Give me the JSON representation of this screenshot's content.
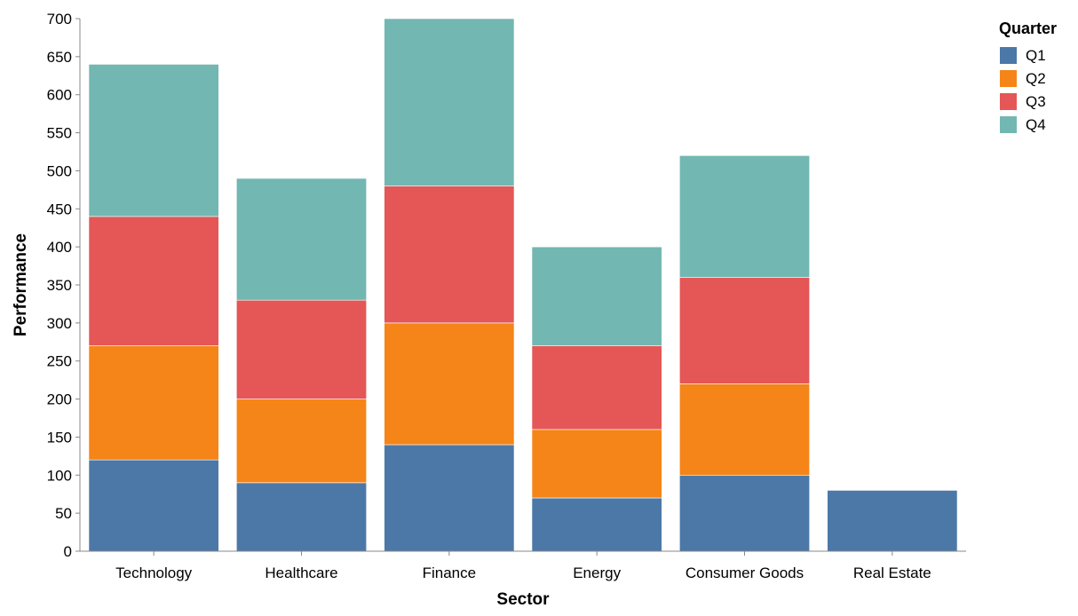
{
  "chart_data": {
    "type": "bar",
    "stacked": true,
    "title": "",
    "xlabel": "Sector",
    "ylabel": "Performance",
    "ylim": [
      0,
      700
    ],
    "yticks": [
      0,
      50,
      100,
      150,
      200,
      250,
      300,
      350,
      400,
      450,
      500,
      550,
      600,
      650,
      700
    ],
    "grid": false,
    "categories": [
      "Technology",
      "Healthcare",
      "Finance",
      "Energy",
      "Consumer Goods",
      "Real Estate"
    ],
    "series": [
      {
        "name": "Q1",
        "color": "#4c78a8",
        "values": [
          120,
          90,
          140,
          70,
          100,
          80
        ]
      },
      {
        "name": "Q2",
        "color": "#f58518",
        "values": [
          150,
          110,
          160,
          90,
          120,
          0
        ]
      },
      {
        "name": "Q3",
        "color": "#e45756",
        "values": [
          170,
          130,
          180,
          110,
          140,
          0
        ]
      },
      {
        "name": "Q4",
        "color": "#72b7b2",
        "values": [
          200,
          160,
          220,
          130,
          160,
          0
        ]
      }
    ],
    "legend": {
      "title": "Quarter",
      "placement": "top-right"
    }
  }
}
